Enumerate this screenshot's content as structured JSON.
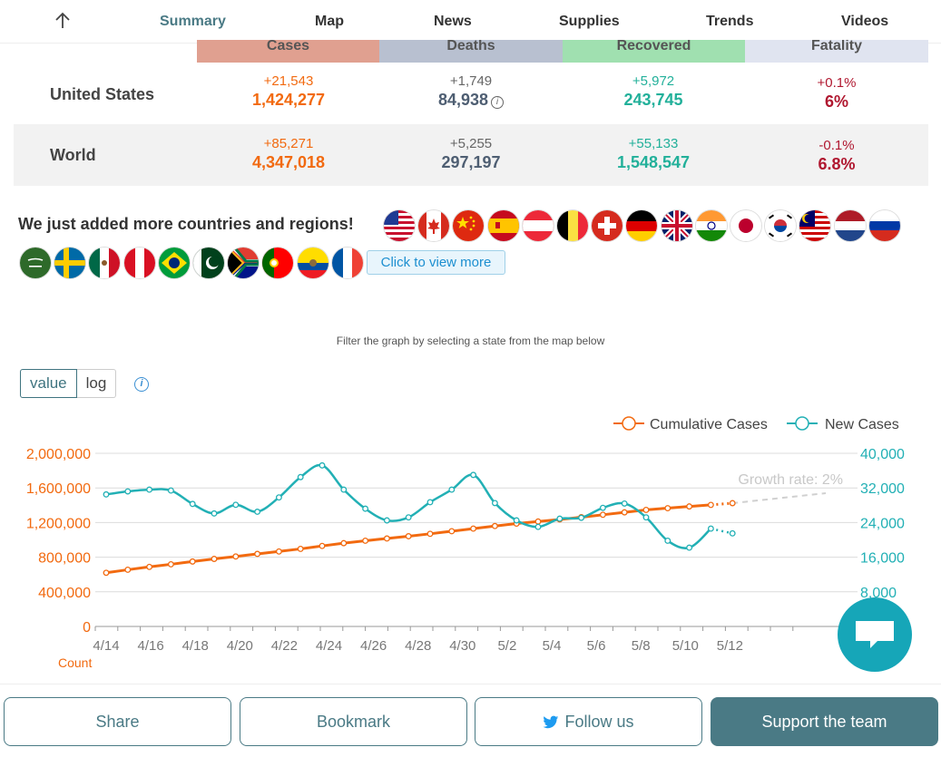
{
  "nav": {
    "tabs": [
      {
        "label": "Summary",
        "active": true
      },
      {
        "label": "Map"
      },
      {
        "label": "News"
      },
      {
        "label": "Supplies"
      },
      {
        "label": "Trends"
      },
      {
        "label": "Videos"
      }
    ]
  },
  "stats": {
    "headers": {
      "cases": "Cases",
      "deaths": "Deaths",
      "recovered": "Recovered",
      "fatality": "Fatality"
    },
    "header_colors": {
      "cases": "#e0a090",
      "deaths": "#b8c0d0",
      "recovered": "#a0e0b0",
      "fatality": "#e0e4f0"
    },
    "rows": [
      {
        "name": "United States",
        "cases_delta": "+21,543",
        "cases": "1,424,277",
        "deaths_delta": "+1,749",
        "deaths": "84,938",
        "recovered_delta": "+5,972",
        "recovered": "243,745",
        "fatality_delta": "+0.1%",
        "fatality": "6%"
      },
      {
        "name": "World",
        "cases_delta": "+85,271",
        "cases": "4,347,018",
        "deaths_delta": "+5,255",
        "deaths": "297,197",
        "recovered_delta": "+55,133",
        "recovered": "1,548,547",
        "fatality_delta": "-0.1%",
        "fatality": "6.8%"
      }
    ]
  },
  "countries": {
    "heading": "We just added more countries and regions!",
    "view_more": "Click to view more",
    "flags": [
      "us-flag-icon",
      "canada-flag-icon",
      "china-flag-icon",
      "spain-flag-icon",
      "austria-flag-icon",
      "belgium-flag-icon",
      "switzerland-flag-icon",
      "germany-flag-icon",
      "uk-flag-icon",
      "india-flag-icon",
      "japan-flag-icon",
      "south-korea-flag-icon",
      "malaysia-flag-icon",
      "netherlands-flag-icon",
      "russia-flag-icon",
      "saudi-arabia-flag-icon",
      "sweden-flag-icon",
      "mexico-flag-icon",
      "peru-flag-icon",
      "brazil-flag-icon",
      "pakistan-flag-icon",
      "south-africa-flag-icon",
      "portugal-flag-icon",
      "ecuador-flag-icon",
      "france-flag-icon"
    ]
  },
  "filter_note": "Filter the graph by selecting a state from the map below",
  "scale_toggle": {
    "value": "value",
    "log": "log",
    "selected": "value"
  },
  "chart_data": {
    "type": "line",
    "growth_label": "Growth rate: 2%",
    "xlabel": "Count",
    "x": [
      "4/14",
      "4/15",
      "4/16",
      "4/17",
      "4/18",
      "4/19",
      "4/20",
      "4/21",
      "4/22",
      "4/23",
      "4/24",
      "4/25",
      "4/26",
      "4/27",
      "4/28",
      "4/29",
      "4/30",
      "5/1",
      "5/2",
      "5/3",
      "5/4",
      "5/5",
      "5/6",
      "5/7",
      "5/8",
      "5/9",
      "5/10",
      "5/11",
      "5/12",
      "5/13"
    ],
    "x_ticks": [
      "4/14",
      "4/16",
      "4/18",
      "4/20",
      "4/22",
      "4/24",
      "4/26",
      "4/28",
      "4/30",
      "5/2",
      "5/4",
      "5/6",
      "5/8",
      "5/10",
      "5/12"
    ],
    "y_left": {
      "range": [
        0,
        2000000
      ],
      "ticks": [
        "0",
        "400,000",
        "800,000",
        "1,200,000",
        "1,600,000",
        "2,000,000"
      ],
      "color": "#f26a10"
    },
    "y_right": {
      "range": [
        0,
        40000
      ],
      "ticks": [
        "8,000",
        "16,000",
        "24,000",
        "32,000",
        "40,000"
      ],
      "color": "#22b0b5"
    },
    "legend": "top-right",
    "grid": true,
    "series": [
      {
        "name": "Cumulative Cases",
        "axis": "left",
        "color": "#f26a10",
        "values": [
          620000,
          655000,
          688000,
          718000,
          750000,
          780000,
          808000,
          838000,
          866000,
          896000,
          930000,
          962000,
          990000,
          1016000,
          1042000,
          1070000,
          1100000,
          1130000,
          1160000,
          1188000,
          1212000,
          1236000,
          1262000,
          1290000,
          1318000,
          1346000,
          1366000,
          1386000,
          1404000,
          1424000
        ]
      },
      {
        "name": "New Cases",
        "axis": "right",
        "color": "#22b0b5",
        "values": [
          30500,
          31200,
          31600,
          31400,
          28300,
          26100,
          28100,
          26500,
          29800,
          34500,
          37200,
          31600,
          27200,
          24500,
          25200,
          28700,
          31600,
          35000,
          28500,
          24500,
          23000,
          24900,
          25100,
          27400,
          28400,
          25200,
          19800,
          18200,
          22600,
          21500
        ]
      }
    ]
  },
  "footer": {
    "share": "Share",
    "bookmark": "Bookmark",
    "follow": "Follow us",
    "support": "Support the team"
  }
}
